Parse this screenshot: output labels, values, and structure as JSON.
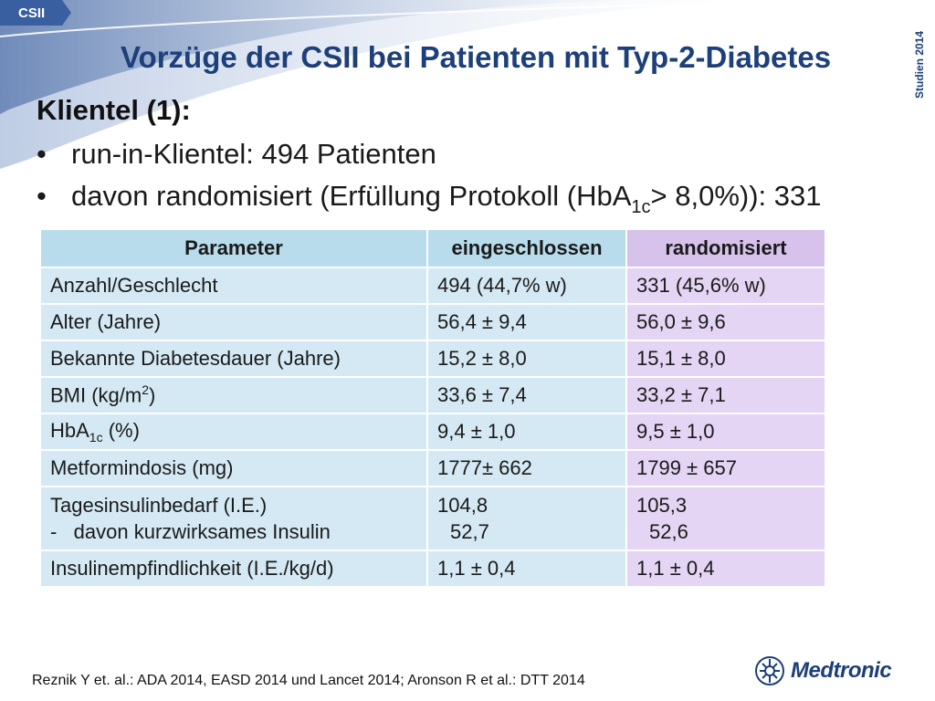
{
  "tag": "CSII",
  "side_label": "Studien 2014",
  "title": "Vorzüge der CSII bei Patienten mit Typ-2-Diabetes",
  "heading": "Klientel (1):",
  "bullets": {
    "b1": "run-in-Klientel: 494 Patienten",
    "b2_pre": "davon randomisiert (Erfüllung Protokoll (HbA",
    "b2_sub": "1c",
    "b2_post": "> 8,0%)): 331"
  },
  "table": {
    "headers": [
      "Parameter",
      "eingeschlossen",
      "randomisiert"
    ],
    "rows": [
      {
        "param": "Anzahl/Geschlecht",
        "eing": "494 (44,7% w)",
        "rand": "331 (45,6% w)"
      },
      {
        "param": "Alter (Jahre)",
        "eing": "56,4 ± 9,4",
        "rand": "56,0 ± 9,6"
      },
      {
        "param": "Bekannte Diabetesdauer (Jahre)",
        "eing": "15,2 ± 8,0",
        "rand": "15,1 ± 8,0"
      },
      {
        "param_pre": "BMI (kg/m",
        "param_sup": "2",
        "param_post": ")",
        "eing": "33,6 ± 7,4",
        "rand": "33,2 ± 7,1"
      },
      {
        "param_pre": "HbA",
        "param_sub": "1c",
        "param_post": " (%)",
        "eing": "9,4 ± 1,0",
        "rand": "9,5 ± 1,0"
      },
      {
        "param": "Metformindosis (mg)",
        "eing": "1777± 662",
        "rand": "1799 ± 657"
      },
      {
        "param": "Tagesinsulinbedarf (I.E.)",
        "param2": "-   davon kurzwirksames Insulin",
        "eing": "104,8",
        "eing2": "52,7",
        "rand": "105,3",
        "rand2": "52,6"
      },
      {
        "param": "Insulinempfindlichkeit (I.E./kg/d)",
        "eing": "1,1 ± 0,4",
        "rand": "1,1 ± 0,4"
      }
    ]
  },
  "footer": "Reznik Y et. al.: ADA 2014, EASD 2014 und Lancet 2014; Aronson R et al.: DTT 2014",
  "logo": "Medtronic",
  "colors": {
    "brand": "#1d3f7a",
    "header_blue": "#b8dcec",
    "header_purple": "#d7c2ec",
    "cell_blue": "#d4e9f4",
    "cell_purple": "#e3d5f3"
  }
}
